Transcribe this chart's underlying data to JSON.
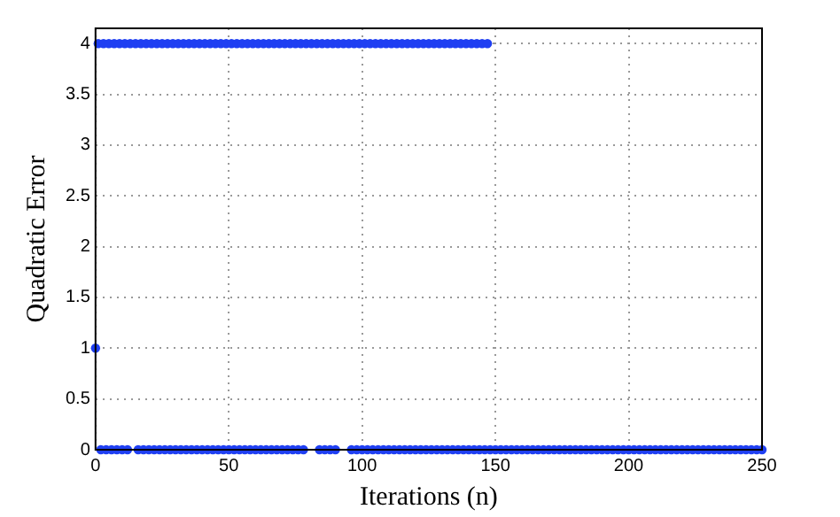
{
  "chart_data": {
    "type": "scatter",
    "xlabel": "Iterations (n)",
    "ylabel": "Quadratic Error",
    "xlim": [
      0,
      250
    ],
    "xticks": [
      0,
      50,
      100,
      150,
      200,
      250
    ],
    "ylim": [
      0,
      4.15
    ],
    "yticks": [
      0,
      0.5,
      1,
      1.5,
      2,
      2.5,
      3,
      3.5,
      4
    ],
    "grid": true,
    "marker": "circle",
    "series": [
      {
        "color": "#1f3ff2",
        "x": [
          0
        ],
        "values": [
          1
        ]
      },
      {
        "color": "#1f3ff2",
        "x": [
          1,
          3,
          5,
          7,
          9,
          11,
          13,
          15,
          17,
          19,
          21,
          23,
          25,
          27,
          29,
          31,
          33,
          35,
          37,
          39,
          41,
          43,
          45,
          47,
          49,
          51,
          53,
          55,
          57,
          59,
          61,
          63,
          65,
          67,
          69,
          71,
          73,
          75,
          77,
          79,
          81,
          83,
          85,
          87,
          89,
          91,
          93,
          95,
          97,
          99,
          101,
          103,
          105,
          107,
          109,
          111,
          113,
          115,
          117,
          119,
          121,
          123,
          125,
          127,
          129,
          131,
          133,
          135,
          137,
          139,
          141,
          143,
          145,
          147
        ],
        "values": [
          4,
          4,
          4,
          4,
          4,
          4,
          4,
          4,
          4,
          4,
          4,
          4,
          4,
          4,
          4,
          4,
          4,
          4,
          4,
          4,
          4,
          4,
          4,
          4,
          4,
          4,
          4,
          4,
          4,
          4,
          4,
          4,
          4,
          4,
          4,
          4,
          4,
          4,
          4,
          4,
          4,
          4,
          4,
          4,
          4,
          4,
          4,
          4,
          4,
          4,
          4,
          4,
          4,
          4,
          4,
          4,
          4,
          4,
          4,
          4,
          4,
          4,
          4,
          4,
          4,
          4,
          4,
          4,
          4,
          4,
          4,
          4,
          4,
          4
        ]
      },
      {
        "color": "#1f3ff2",
        "x": [
          2,
          4,
          6,
          8,
          10,
          12,
          16,
          18,
          20,
          22,
          24,
          26,
          28,
          30,
          32,
          34,
          36,
          38,
          40,
          42,
          44,
          46,
          48,
          50,
          52,
          54,
          56,
          58,
          60,
          62,
          64,
          66,
          68,
          70,
          72,
          74,
          76,
          78,
          84,
          86,
          88,
          90,
          96,
          98,
          100,
          102,
          104,
          106,
          108,
          110,
          112,
          114,
          116,
          118,
          120,
          122,
          124,
          126,
          128,
          130,
          132,
          134,
          136,
          138,
          140,
          142,
          144,
          146,
          148,
          150,
          152,
          154,
          156,
          158,
          160,
          162,
          164,
          166,
          168,
          170,
          172,
          174,
          176,
          178,
          180,
          182,
          184,
          186,
          188,
          190,
          192,
          194,
          196,
          198,
          200,
          202,
          204,
          206,
          208,
          210,
          212,
          214,
          216,
          218,
          220,
          222,
          224,
          226,
          228,
          230,
          232,
          234,
          236,
          238,
          240,
          242,
          244,
          246,
          248,
          250
        ],
        "values": [
          0,
          0,
          0,
          0,
          0,
          0,
          0,
          0,
          0,
          0,
          0,
          0,
          0,
          0,
          0,
          0,
          0,
          0,
          0,
          0,
          0,
          0,
          0,
          0,
          0,
          0,
          0,
          0,
          0,
          0,
          0,
          0,
          0,
          0,
          0,
          0,
          0,
          0,
          0,
          0,
          0,
          0,
          0,
          0,
          0,
          0,
          0,
          0,
          0,
          0,
          0,
          0,
          0,
          0,
          0,
          0,
          0,
          0,
          0,
          0,
          0,
          0,
          0,
          0,
          0,
          0,
          0,
          0,
          0,
          0,
          0,
          0,
          0,
          0,
          0,
          0,
          0,
          0,
          0,
          0,
          0,
          0,
          0,
          0,
          0,
          0,
          0,
          0,
          0,
          0,
          0,
          0,
          0,
          0,
          0,
          0,
          0,
          0,
          0,
          0,
          0,
          0,
          0,
          0,
          0,
          0,
          0,
          0,
          0,
          0,
          0,
          0,
          0,
          0,
          0,
          0,
          0,
          0,
          0,
          0
        ]
      }
    ]
  }
}
